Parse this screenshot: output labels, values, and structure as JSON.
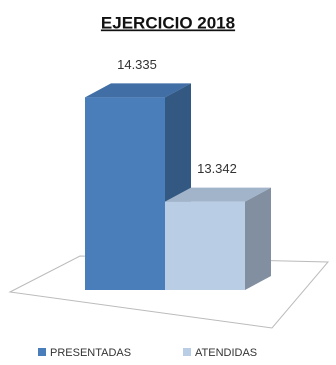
{
  "chart_data": {
    "type": "bar3d",
    "title": "EJERCICIO 2018",
    "series": [
      {
        "name": "PRESENTADAS",
        "color": "#4a7ebb",
        "values": [
          14335
        ],
        "value_labels": [
          "14.335"
        ]
      },
      {
        "name": "ATENDIDAS",
        "color": "#b9cde5",
        "values": [
          13342
        ],
        "value_labels": [
          "13.342"
        ]
      }
    ],
    "ylim": [
      12500,
      14500
    ],
    "legend": "bottom"
  }
}
